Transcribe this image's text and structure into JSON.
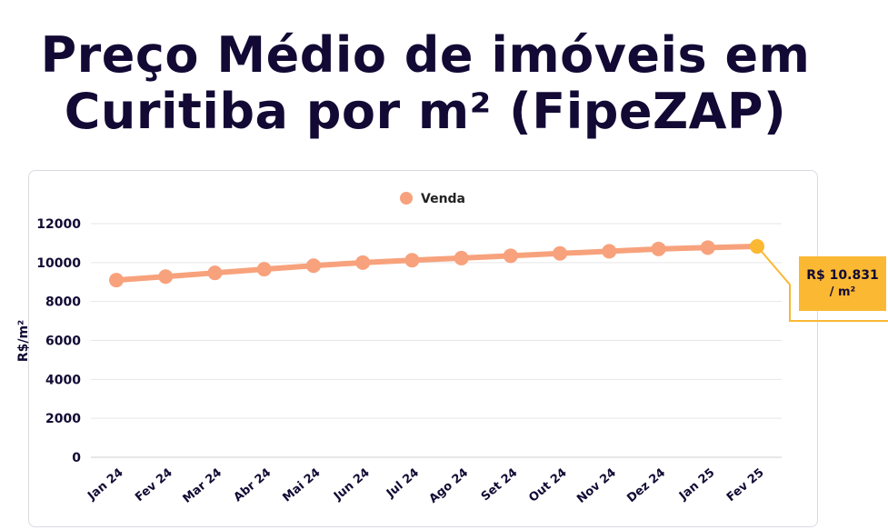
{
  "title": {
    "line1": "Preço Médio de imóveis em",
    "line2": "Curitiba por m² (FipeZAP)"
  },
  "colors": {
    "series": "#f7a27c",
    "callout": "#fbb833",
    "title": "#120a34",
    "grid": "#e6e6e6"
  },
  "callout": {
    "value": "R$ 10.831",
    "unit": "/ m²"
  },
  "chart_data": {
    "type": "line",
    "categories": [
      "Jan 24",
      "Fev 24",
      "Mar 24",
      "Abr 24",
      "Mai 24",
      "Jun 24",
      "Jul 24",
      "Ago 24",
      "Set 24",
      "Out 24",
      "Nov 24",
      "Dez 24",
      "Jan 25",
      "Fev 25"
    ],
    "series": [
      {
        "name": "Venda",
        "values": [
          9100,
          9280,
          9470,
          9660,
          9840,
          10000,
          10120,
          10230,
          10350,
          10470,
          10580,
          10700,
          10770,
          10831
        ]
      }
    ],
    "ylabel": "R$/m²",
    "xlabel": "",
    "ylim": [
      0,
      12000
    ],
    "yticks": [
      0,
      2000,
      4000,
      6000,
      8000,
      10000,
      12000
    ],
    "legend_position": "top-center",
    "grid": true
  }
}
